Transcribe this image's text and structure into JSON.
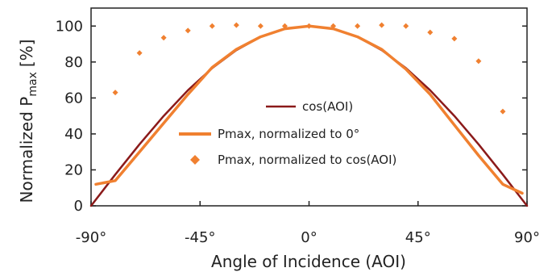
{
  "chart_data": {
    "type": "line",
    "xlabel": "Angle of Incidence (AOI)",
    "ylabel_main": "Normalized P",
    "ylabel_sub": "max",
    "ylabel_unit": "[%]",
    "xlim": [
      -90,
      90
    ],
    "ylim": [
      0,
      110
    ],
    "x_ticks": [
      -90,
      -45,
      0,
      45,
      90
    ],
    "x_tick_labels": [
      "-90°",
      "-45°",
      "0°",
      "45°",
      "90°"
    ],
    "y_ticks": [
      0,
      20,
      40,
      60,
      80,
      100
    ],
    "y_tick_labels": [
      "0",
      "20",
      "40",
      "60",
      "80",
      "100"
    ],
    "grid": false,
    "legend_position": "center",
    "series": [
      {
        "name": "cos(AOI)",
        "kind": "line",
        "color": "#8b1a1a",
        "x": [
          -90,
          -80,
          -70,
          -60,
          -50,
          -40,
          -30,
          -20,
          -10,
          0,
          10,
          20,
          30,
          40,
          50,
          60,
          70,
          80,
          90
        ],
        "y": [
          0,
          17.4,
          34.2,
          50,
          64.3,
          76.6,
          86.6,
          94,
          98.5,
          100,
          98.5,
          94,
          86.6,
          76.6,
          64.3,
          50,
          34.2,
          17.4,
          0
        ]
      },
      {
        "name": "Pmax, normalized to 0°",
        "kind": "line",
        "color": "#f08030",
        "x": [
          -88,
          -80,
          -70,
          -60,
          -50,
          -40,
          -30,
          -20,
          -10,
          0,
          10,
          20,
          30,
          40,
          50,
          60,
          70,
          80,
          88
        ],
        "y": [
          12,
          14,
          30,
          46,
          62,
          77,
          87,
          94,
          98.5,
          100,
          98.5,
          94,
          87,
          76,
          62,
          45,
          28,
          12,
          7
        ]
      },
      {
        "name": "Pmax, normalized to cos(AOI)",
        "kind": "scatter",
        "color": "#f08030",
        "x": [
          -80,
          -70,
          -60,
          -50,
          -40,
          -30,
          -20,
          -10,
          0,
          10,
          20,
          30,
          40,
          50,
          60,
          70,
          80
        ],
        "y": [
          63,
          85,
          93.5,
          97.5,
          100,
          100.5,
          100,
          100,
          100,
          100,
          100,
          100.5,
          100,
          96.5,
          93,
          80.5,
          52.5
        ]
      }
    ]
  }
}
